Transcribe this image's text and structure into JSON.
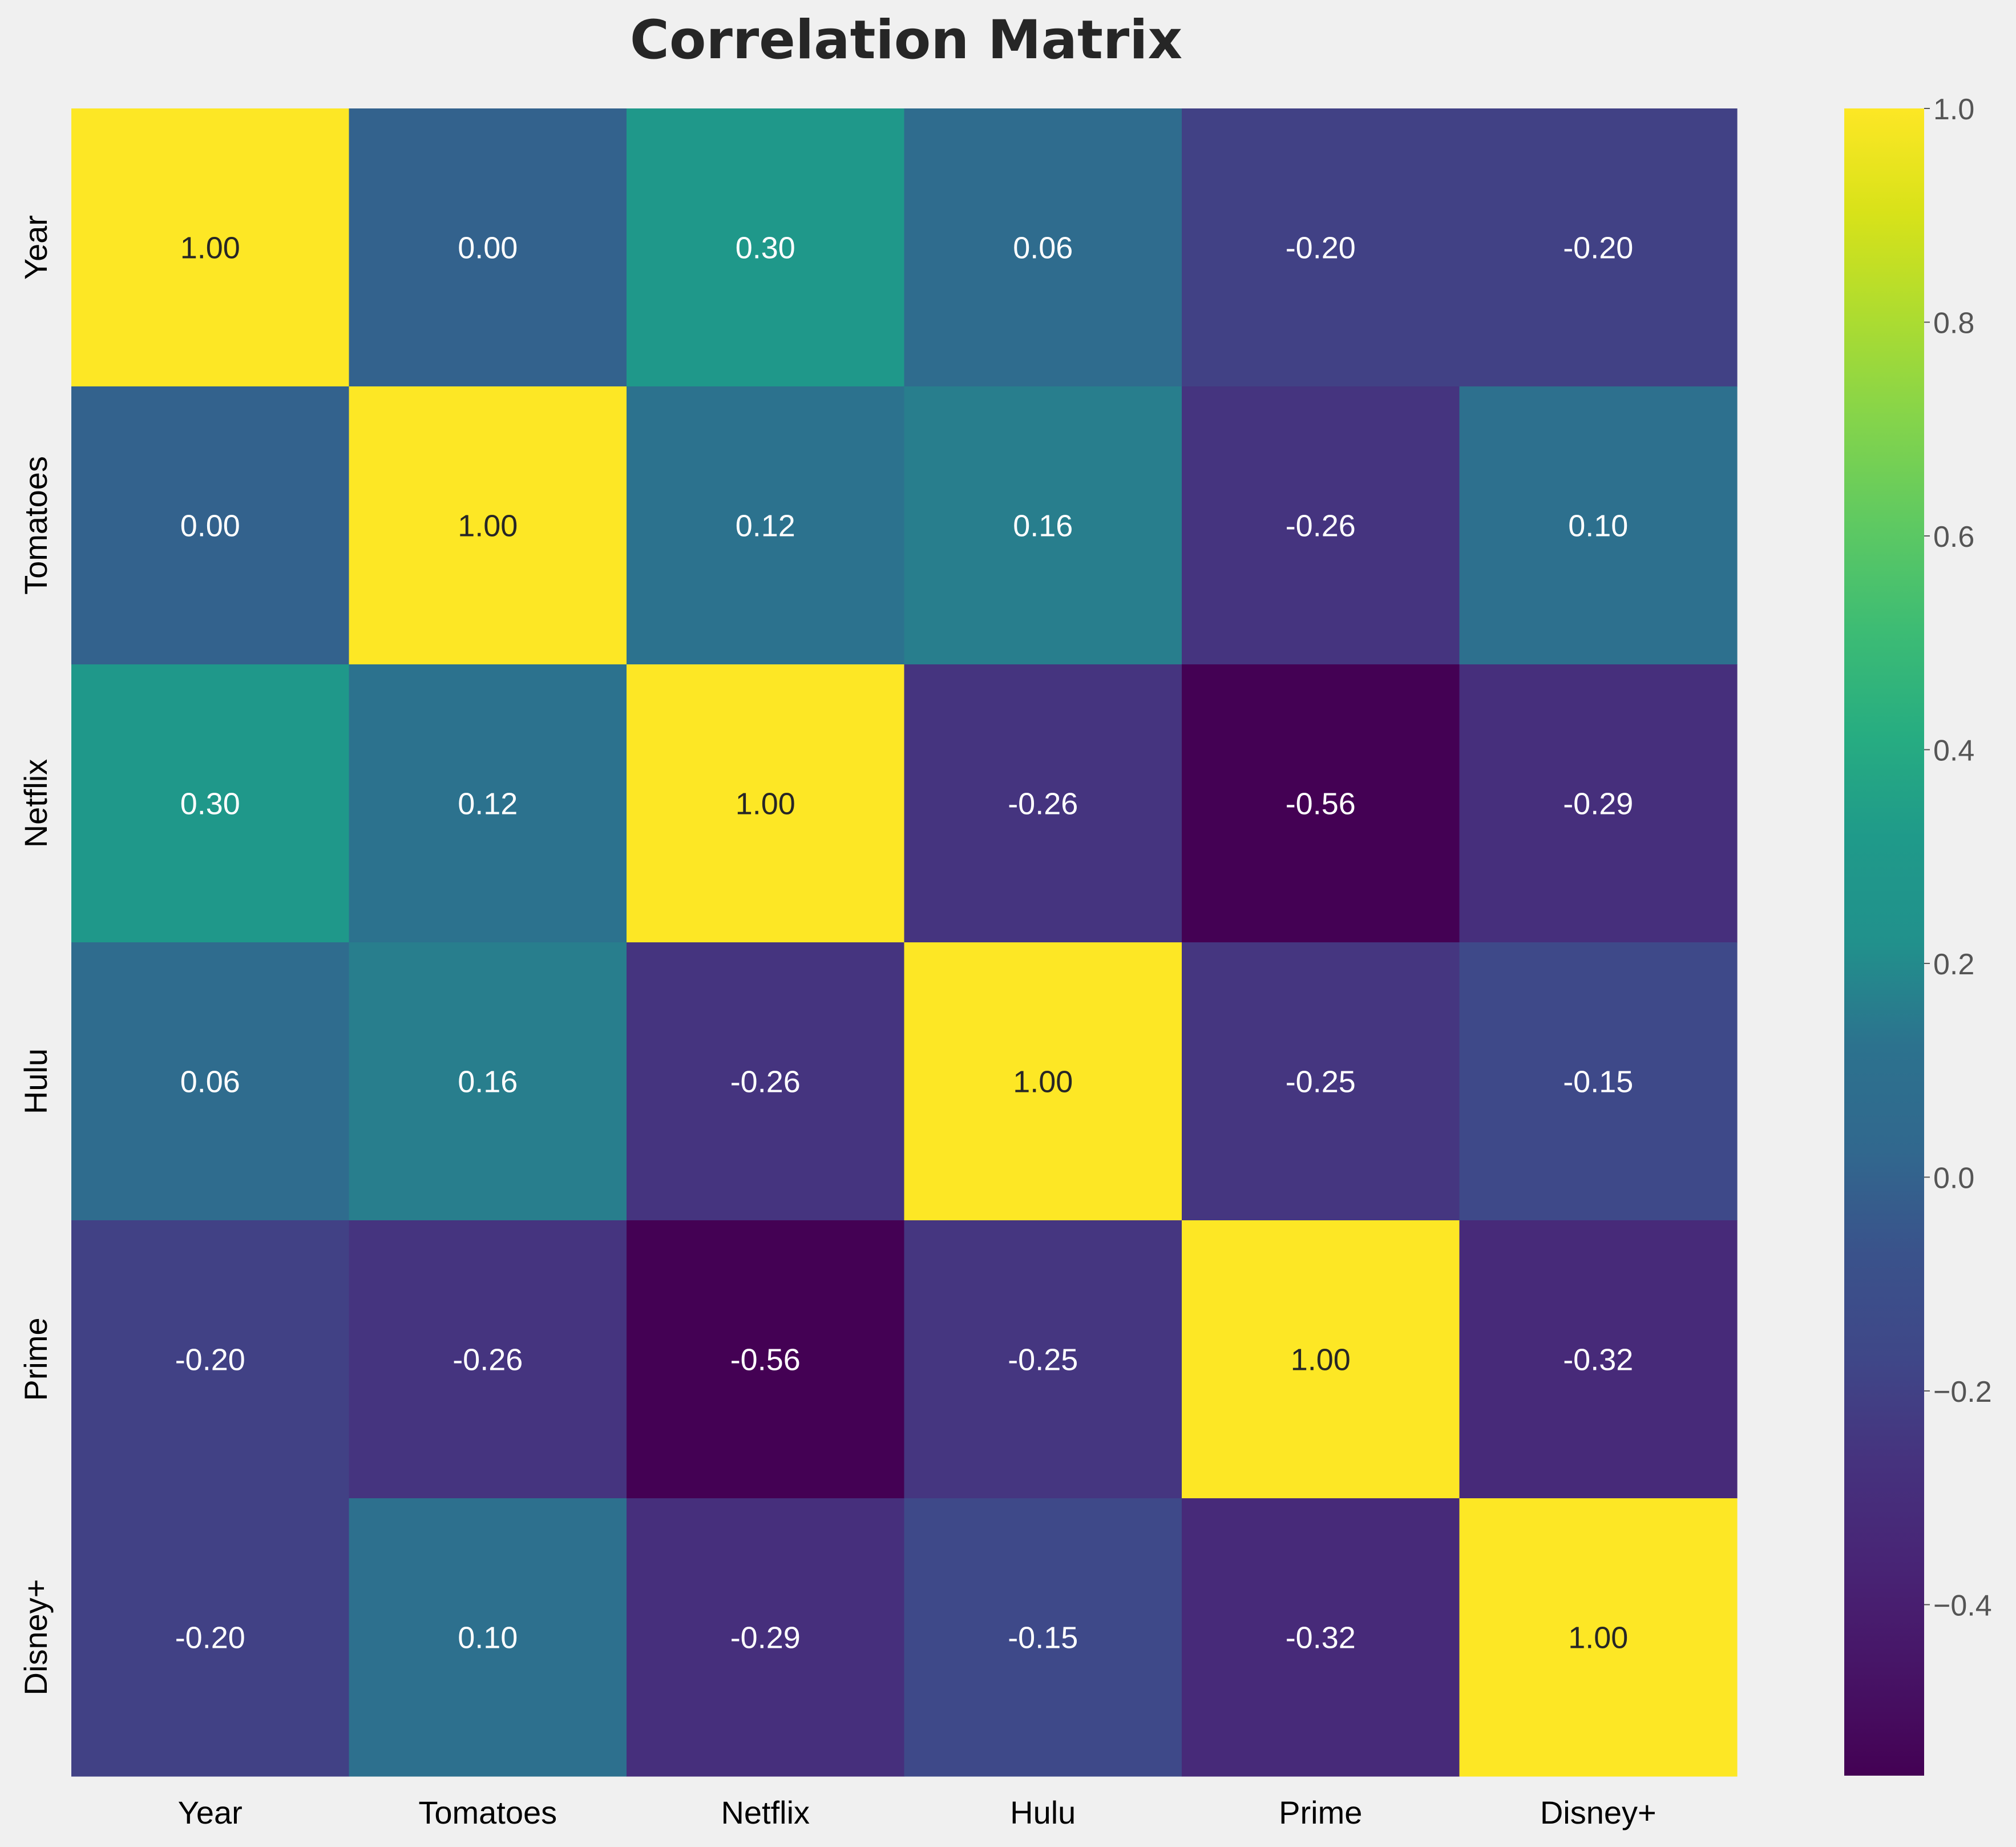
{
  "chart_data": {
    "type": "heatmap",
    "title": "Correlation Matrix",
    "xlabel": "",
    "ylabel": "",
    "x_categories": [
      "Year",
      "Tomatoes",
      "Netflix",
      "Hulu",
      "Prime",
      "Disney+"
    ],
    "y_categories": [
      "Year",
      "Tomatoes",
      "Netflix",
      "Hulu",
      "Prime",
      "Disney+"
    ],
    "values": [
      [
        1.0,
        0.0,
        0.3,
        0.06,
        -0.2,
        -0.2
      ],
      [
        0.0,
        1.0,
        0.12,
        0.16,
        -0.26,
        0.1
      ],
      [
        0.3,
        0.12,
        1.0,
        -0.26,
        -0.56,
        -0.29
      ],
      [
        0.06,
        0.16,
        -0.26,
        1.0,
        -0.25,
        -0.15
      ],
      [
        -0.2,
        -0.26,
        -0.56,
        -0.25,
        1.0,
        -0.32
      ],
      [
        -0.2,
        0.1,
        -0.29,
        -0.15,
        -0.32,
        1.0
      ]
    ],
    "cell_labels": [
      [
        "1.00",
        "0.00",
        "0.30",
        "0.06",
        "-0.20",
        "-0.20"
      ],
      [
        "0.00",
        "1.00",
        "0.12",
        "0.16",
        "-0.26",
        "0.10"
      ],
      [
        "0.30",
        "0.12",
        "1.00",
        "-0.26",
        "-0.56",
        "-0.29"
      ],
      [
        "0.06",
        "0.16",
        "-0.26",
        "1.00",
        "-0.25",
        "-0.15"
      ],
      [
        "-0.20",
        "-0.26",
        "-0.56",
        "-0.25",
        "1.00",
        "-0.32"
      ],
      [
        "-0.20",
        "0.10",
        "-0.29",
        "-0.15",
        "-0.32",
        "1.00"
      ]
    ],
    "colormap": "viridis",
    "vmin": -0.56,
    "vmax": 1.0,
    "colorbar": {
      "position": "right",
      "ticks": [
        1.0,
        0.8,
        0.6,
        0.4,
        0.2,
        0.0,
        -0.2,
        -0.4
      ],
      "tick_labels": [
        "1.0",
        "0.8",
        "0.6",
        "0.4",
        "0.2",
        "0.0",
        "−0.2",
        "−0.4"
      ]
    },
    "grid": false,
    "background_color": "#f0f0f0"
  }
}
